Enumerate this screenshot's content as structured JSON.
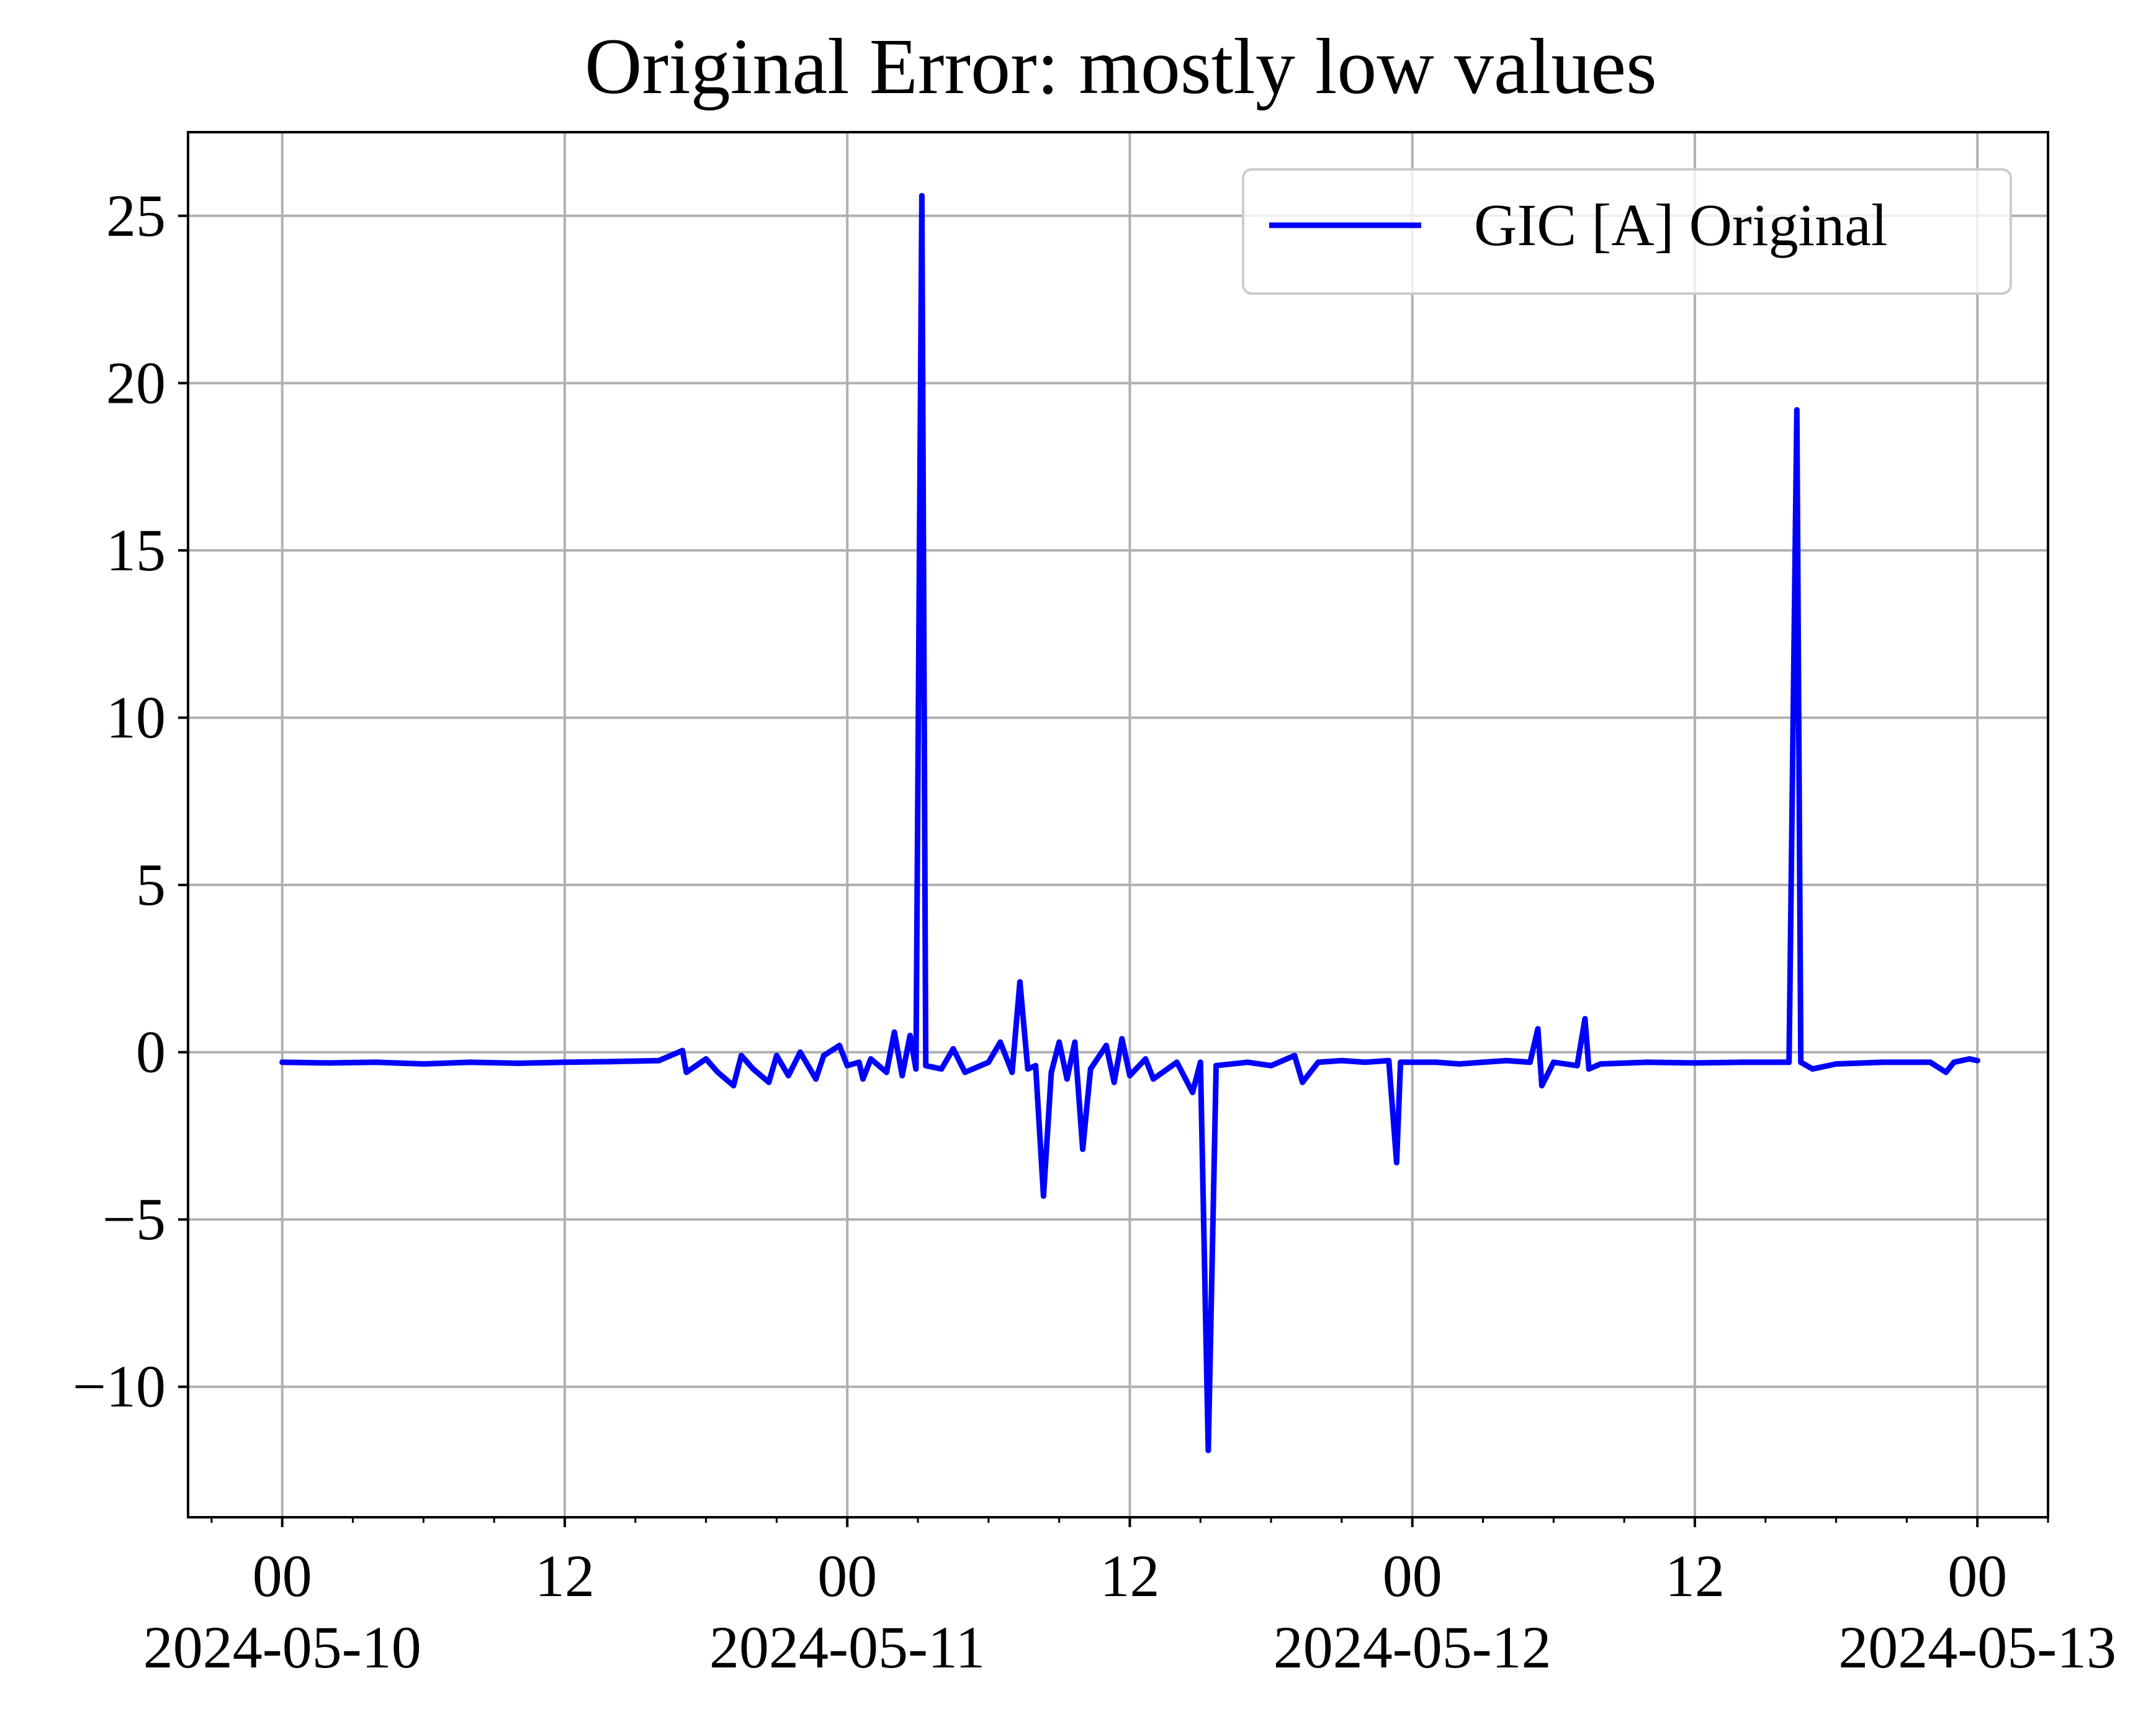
{
  "chart_data": {
    "type": "line",
    "title": "Original Error: mostly low values",
    "xlabel": "",
    "ylabel": "",
    "x_axis": {
      "kind": "datetime",
      "range": [
        "2024-05-09T20:00",
        "2024-05-13T03:00"
      ],
      "ticks": [
        {
          "x": "2024-05-10T00:00",
          "label": "00",
          "date_label": "2024-05-10"
        },
        {
          "x": "2024-05-10T12:00",
          "label": "12",
          "date_label": ""
        },
        {
          "x": "2024-05-11T00:00",
          "label": "00",
          "date_label": "2024-05-11"
        },
        {
          "x": "2024-05-11T12:00",
          "label": "12",
          "date_label": ""
        },
        {
          "x": "2024-05-12T00:00",
          "label": "00",
          "date_label": "2024-05-12"
        },
        {
          "x": "2024-05-12T12:00",
          "label": "12",
          "date_label": ""
        },
        {
          "x": "2024-05-13T00:00",
          "label": "00",
          "date_label": "2024-05-13"
        }
      ],
      "minor_tick_hours": 3
    },
    "ylim": [
      -13.9,
      27.5
    ],
    "y_ticks": [
      {
        "value": -10,
        "label": "−10"
      },
      {
        "value": -5,
        "label": "−5"
      },
      {
        "value": 0,
        "label": "0"
      },
      {
        "value": 5,
        "label": "5"
      },
      {
        "value": 10,
        "label": "10"
      },
      {
        "value": 15,
        "label": "15"
      },
      {
        "value": 20,
        "label": "20"
      },
      {
        "value": 25,
        "label": "25"
      }
    ],
    "grid": true,
    "legend": {
      "placement": "top-right"
    },
    "series": [
      {
        "name": "GIC [A] Original",
        "color": "#0000ff",
        "points": [
          [
            "2024-05-10T00:00",
            -0.3
          ],
          [
            "2024-05-10T02:00",
            -0.32
          ],
          [
            "2024-05-10T04:00",
            -0.3
          ],
          [
            "2024-05-10T06:00",
            -0.35
          ],
          [
            "2024-05-10T08:00",
            -0.3
          ],
          [
            "2024-05-10T10:00",
            -0.33
          ],
          [
            "2024-05-10T12:00",
            -0.3
          ],
          [
            "2024-05-10T14:00",
            -0.28
          ],
          [
            "2024-05-10T16:00",
            -0.25
          ],
          [
            "2024-05-10T17:00",
            0.05
          ],
          [
            "2024-05-10T17:10",
            -0.6
          ],
          [
            "2024-05-10T18:00",
            -0.2
          ],
          [
            "2024-05-10T18:30",
            -0.6
          ],
          [
            "2024-05-10T19:10",
            -1.0
          ],
          [
            "2024-05-10T19:30",
            -0.1
          ],
          [
            "2024-05-10T20:00",
            -0.5
          ],
          [
            "2024-05-10T20:40",
            -0.9
          ],
          [
            "2024-05-10T21:00",
            -0.1
          ],
          [
            "2024-05-10T21:30",
            -0.7
          ],
          [
            "2024-05-10T22:00",
            0.0
          ],
          [
            "2024-05-10T22:40",
            -0.8
          ],
          [
            "2024-05-10T23:00",
            -0.1
          ],
          [
            "2024-05-10T23:40",
            0.2
          ],
          [
            "2024-05-11T00:00",
            -0.4
          ],
          [
            "2024-05-11T00:30",
            -0.3
          ],
          [
            "2024-05-11T00:40",
            -0.8
          ],
          [
            "2024-05-11T01:00",
            -0.2
          ],
          [
            "2024-05-11T01:40",
            -0.6
          ],
          [
            "2024-05-11T02:00",
            0.6
          ],
          [
            "2024-05-11T02:20",
            -0.7
          ],
          [
            "2024-05-11T02:40",
            0.5
          ],
          [
            "2024-05-11T02:55",
            -0.5
          ],
          [
            "2024-05-11T03:10",
            25.6
          ],
          [
            "2024-05-11T03:20",
            -0.4
          ],
          [
            "2024-05-11T04:00",
            -0.5
          ],
          [
            "2024-05-11T04:30",
            0.1
          ],
          [
            "2024-05-11T05:00",
            -0.6
          ],
          [
            "2024-05-11T06:00",
            -0.3
          ],
          [
            "2024-05-11T06:30",
            0.3
          ],
          [
            "2024-05-11T07:00",
            -0.6
          ],
          [
            "2024-05-11T07:20",
            2.1
          ],
          [
            "2024-05-11T07:40",
            -0.5
          ],
          [
            "2024-05-11T08:00",
            -0.4
          ],
          [
            "2024-05-11T08:20",
            -4.3
          ],
          [
            "2024-05-11T08:40",
            -0.6
          ],
          [
            "2024-05-11T09:00",
            0.3
          ],
          [
            "2024-05-11T09:20",
            -0.8
          ],
          [
            "2024-05-11T09:40",
            0.3
          ],
          [
            "2024-05-11T10:00",
            -2.9
          ],
          [
            "2024-05-11T10:20",
            -0.5
          ],
          [
            "2024-05-11T11:00",
            0.2
          ],
          [
            "2024-05-11T11:20",
            -0.9
          ],
          [
            "2024-05-11T11:40",
            0.4
          ],
          [
            "2024-05-11T12:00",
            -0.7
          ],
          [
            "2024-05-11T12:40",
            -0.2
          ],
          [
            "2024-05-11T13:00",
            -0.8
          ],
          [
            "2024-05-11T14:00",
            -0.3
          ],
          [
            "2024-05-11T14:40",
            -1.2
          ],
          [
            "2024-05-11T15:00",
            -0.3
          ],
          [
            "2024-05-11T15:20",
            -11.9
          ],
          [
            "2024-05-11T15:40",
            -0.4
          ],
          [
            "2024-05-11T17:00",
            -0.3
          ],
          [
            "2024-05-11T18:00",
            -0.4
          ],
          [
            "2024-05-11T19:00",
            -0.1
          ],
          [
            "2024-05-11T19:20",
            -0.9
          ],
          [
            "2024-05-11T20:00",
            -0.3
          ],
          [
            "2024-05-11T21:00",
            -0.25
          ],
          [
            "2024-05-11T22:00",
            -0.3
          ],
          [
            "2024-05-11T23:00",
            -0.25
          ],
          [
            "2024-05-11T23:20",
            -3.3
          ],
          [
            "2024-05-11T23:30",
            -0.3
          ],
          [
            "2024-05-12T01:00",
            -0.3
          ],
          [
            "2024-05-12T02:00",
            -0.35
          ],
          [
            "2024-05-12T03:00",
            -0.3
          ],
          [
            "2024-05-12T04:00",
            -0.25
          ],
          [
            "2024-05-12T05:00",
            -0.3
          ],
          [
            "2024-05-12T05:20",
            0.7
          ],
          [
            "2024-05-12T05:30",
            -1.0
          ],
          [
            "2024-05-12T06:00",
            -0.3
          ],
          [
            "2024-05-12T07:00",
            -0.4
          ],
          [
            "2024-05-12T07:20",
            1.0
          ],
          [
            "2024-05-12T07:30",
            -0.5
          ],
          [
            "2024-05-12T08:00",
            -0.35
          ],
          [
            "2024-05-12T10:00",
            -0.3
          ],
          [
            "2024-05-12T12:00",
            -0.32
          ],
          [
            "2024-05-12T14:00",
            -0.3
          ],
          [
            "2024-05-12T16:00",
            -0.3
          ],
          [
            "2024-05-12T16:20",
            19.2
          ],
          [
            "2024-05-12T16:30",
            -0.3
          ],
          [
            "2024-05-12T17:00",
            -0.5
          ],
          [
            "2024-05-12T18:00",
            -0.35
          ],
          [
            "2024-05-12T20:00",
            -0.3
          ],
          [
            "2024-05-12T22:00",
            -0.3
          ],
          [
            "2024-05-12T22:40",
            -0.6
          ],
          [
            "2024-05-12T23:00",
            -0.3
          ],
          [
            "2024-05-12T23:40",
            -0.2
          ],
          [
            "2024-05-13T00:00",
            -0.25
          ]
        ]
      }
    ]
  }
}
